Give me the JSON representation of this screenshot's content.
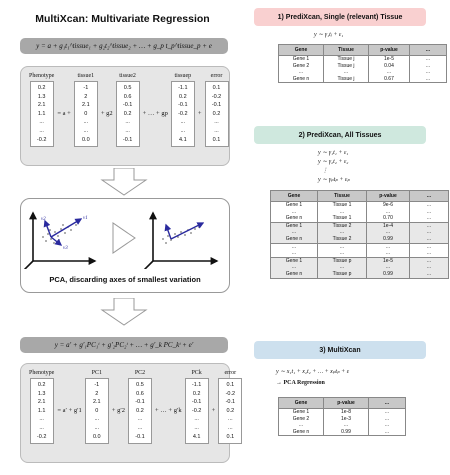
{
  "left": {
    "title": "MultiXcan: Multivariate Regression",
    "eq_top": "y = a + g₁t₁^tissue₁ + g₂t₂^tissue₂ + … + g_p t_p^tissue_p + e",
    "top_matrix": {
      "headers": [
        "Phenotype",
        "tissue1",
        "tissue2",
        "tissuep",
        "error"
      ],
      "phenotype": [
        "0.2",
        "1.3",
        "2.1",
        "1.1",
        "...",
        "...",
        "-0.2"
      ],
      "tissue1": [
        "-1",
        "2",
        "2.1",
        "0",
        "...",
        "...",
        "0.0"
      ],
      "tissue2": [
        "0.5",
        "0.6",
        "-0.1",
        "0.2",
        "...",
        "...",
        "-0.1"
      ],
      "tissuep": [
        "-1.1",
        "0.2",
        "-0.1",
        "-0.2",
        "...",
        "...",
        "4.1"
      ],
      "error": [
        "0.1",
        "-0.2",
        "-0.1",
        "0.2",
        "...",
        "...",
        "0.1"
      ],
      "ops": {
        "eq": "= a +",
        "g1": "g1",
        "g2": "+ g2",
        "dots": "+ … + gp",
        "plus": "+"
      }
    },
    "pca": {
      "caption": "PCA, discarding axes of smallest variation",
      "v1": "v1",
      "v2": "v2",
      "v3": "v3"
    },
    "eq_bottom": "y = a′ + g′₁PC₁ᵗ + g′₂PC₂ᵗ + … + g′_k PC_kᵗ + e′",
    "bottom_matrix": {
      "headers": [
        "Phenotype",
        "PC1",
        "PC2",
        "PCk",
        "error"
      ],
      "phenotype": [
        "0.2",
        "1.3",
        "2.1",
        "1.1",
        "...",
        "...",
        "-0.2"
      ],
      "pc1": [
        "-1",
        "2",
        "2.1",
        "0",
        "...",
        "...",
        "0.0"
      ],
      "pc2": [
        "0.5",
        "0.6",
        "-0.1",
        "0.2",
        "...",
        "...",
        "-0.1"
      ],
      "pck": [
        "-1.1",
        "0.2",
        "-0.1",
        "-0.2",
        "...",
        "...",
        "4.1"
      ],
      "error": [
        "0.1",
        "-0.2",
        "-0.1",
        "0.2",
        "...",
        "...",
        "0.1"
      ],
      "ops": {
        "eq": "= a′ + g′1",
        "g2": "+ g′2",
        "dots": "+ … + g′k",
        "plus": "+"
      }
    }
  },
  "right": {
    "s1": {
      "title": "1) PrediXcan, Single (relevant) Tissue",
      "color": "#f9d0d0",
      "eq": "y ∼ γ₁tⱼ + ε₁",
      "headers": [
        "Gene",
        "Tissue",
        "p-value",
        "..."
      ],
      "rows": [
        [
          "Gene 1",
          "Tissue j",
          "1e-5",
          "..."
        ],
        [
          "Gene 2",
          "Tissue j",
          "0.04",
          "..."
        ],
        [
          "...",
          "...",
          "...",
          "..."
        ],
        [
          "Gene n",
          "Tissue j",
          "0.67",
          "..."
        ]
      ]
    },
    "s2": {
      "title": "2) PrediXcan, All Tissues",
      "color": "#cfe8de",
      "eqs": [
        "y ∼ γ₁t₁ + ε₁",
        "y ∼ γ₂t₂ + ε₂",
        "y ∼ γₚtₚ + εₚ"
      ],
      "eq_dots": "⋮",
      "headers": [
        "Gene",
        "Tissue",
        "p-value",
        "..."
      ],
      "groups": [
        {
          "rows": [
            [
              "Gene 1",
              "Tissue 1",
              "9e-6",
              "..."
            ],
            [
              "...",
              "...",
              "...",
              "..."
            ],
            [
              "Gene n",
              "Tissue 1",
              "0.70",
              "..."
            ]
          ]
        },
        {
          "rows": [
            [
              "Gene 1",
              "Tissue 2",
              "1e-4",
              "..."
            ],
            [
              "...",
              "...",
              "...",
              "..."
            ],
            [
              "Gene n",
              "Tissue 2",
              "0.99",
              "..."
            ]
          ]
        },
        {
          "rows": [
            [
              "...",
              "...",
              "...",
              "..."
            ],
            [
              "...",
              "...",
              "...",
              "..."
            ]
          ]
        },
        {
          "rows": [
            [
              "Gene 1",
              "Tissue p",
              "1e-5",
              "..."
            ],
            [
              "...",
              "...",
              "...",
              "..."
            ],
            [
              "Gene n",
              "Tissue p",
              "0.99",
              "..."
            ]
          ]
        }
      ]
    },
    "s3": {
      "title": "3) MultiXcan",
      "color": "#cde0ee",
      "eq": "y ∼ x₁t₁ + x₂t₂ + … + xₚtₚ + ε",
      "eq2": "→ PCA Regression",
      "headers": [
        "Gene",
        "p-value",
        "..."
      ],
      "rows": [
        [
          "Gene 1",
          "1e-8",
          "..."
        ],
        [
          "Gene 2",
          "1e-3",
          "..."
        ],
        [
          "...",
          "...",
          "..."
        ],
        [
          "Gene n",
          "0.99",
          "..."
        ]
      ]
    }
  }
}
